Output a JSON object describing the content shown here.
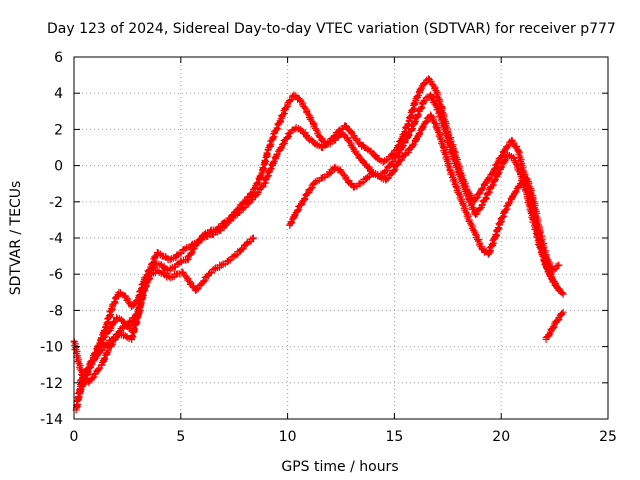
{
  "chart_data": {
    "type": "scatter",
    "title": "Day 123 of 2024, Sidereal Day-to-day VTEC variation (SDTVAR) for receiver p777",
    "xlabel": "GPS time / hours",
    "ylabel": "SDTVAR / TECUs",
    "xlim": [
      0,
      25
    ],
    "ylim": [
      -14,
      6
    ],
    "xticks": [
      0,
      5,
      10,
      15,
      20,
      25
    ],
    "yticks": [
      -14,
      -12,
      -10,
      -8,
      -6,
      -4,
      -2,
      0,
      2,
      4,
      6
    ],
    "grid": true,
    "marker": "+",
    "color": "#ff0000",
    "series": [
      {
        "name": "track-1",
        "x": [
          0.1,
          0.3,
          0.6,
          0.9,
          1.2,
          1.5,
          1.8,
          2.1,
          2.4,
          2.7,
          3.0,
          3.3,
          3.6,
          3.9,
          4.2,
          4.5,
          4.8,
          5.2,
          5.5,
          5.8,
          6.1,
          6.4,
          6.7,
          7.0,
          7.3,
          7.6,
          7.9,
          8.2,
          8.5,
          8.8,
          9.1,
          9.4,
          9.7,
          10.0,
          10.3,
          10.6,
          10.9,
          11.2,
          11.5,
          11.8,
          12.1,
          12.4,
          12.7,
          13.0,
          13.3,
          13.6,
          13.9,
          14.2,
          14.5,
          14.8,
          15.1,
          15.4,
          15.7,
          16.0,
          16.3,
          16.6,
          16.9,
          17.2,
          17.5,
          17.8,
          18.1,
          18.4,
          18.7,
          19.0,
          19.3,
          19.6,
          19.9,
          20.2,
          20.5,
          20.8,
          21.1,
          21.4,
          21.7,
          22.0,
          22.3,
          22.6,
          22.9
        ],
        "y": [
          -13.5,
          -12.2,
          -11.4,
          -10.6,
          -9.8,
          -8.9,
          -7.8,
          -7.0,
          -7.2,
          -7.8,
          -7.4,
          -6.3,
          -5.6,
          -4.8,
          -5.0,
          -5.2,
          -5.0,
          -4.6,
          -4.4,
          -4.2,
          -3.8,
          -3.6,
          -3.5,
          -3.2,
          -2.9,
          -2.5,
          -2.1,
          -1.7,
          -1.2,
          -0.4,
          0.9,
          1.8,
          2.6,
          3.4,
          3.9,
          3.6,
          3.0,
          2.3,
          1.6,
          1.2,
          1.5,
          1.9,
          2.2,
          1.8,
          1.3,
          1.0,
          0.8,
          0.4,
          0.2,
          0.5,
          0.9,
          1.6,
          2.5,
          3.6,
          4.4,
          4.8,
          4.3,
          3.2,
          1.9,
          0.8,
          -0.4,
          -1.3,
          -2.0,
          -1.5,
          -0.9,
          -0.4,
          0.3,
          0.9,
          1.4,
          0.8,
          -0.6,
          -2.1,
          -3.8,
          -5.2,
          -6.1,
          -6.7,
          -7.1
        ]
      },
      {
        "name": "track-2",
        "x": [
          0.2,
          0.5,
          0.8,
          1.1,
          1.4,
          1.7,
          2.0,
          2.3,
          2.6,
          2.9,
          3.2,
          3.5,
          3.8,
          4.1,
          4.4,
          4.7,
          5.0,
          5.3,
          5.6,
          5.9,
          6.2,
          6.5,
          6.8,
          7.1,
          7.4,
          7.7,
          8.0,
          8.3,
          8.6,
          8.9,
          9.2,
          9.5,
          9.8,
          10.1,
          10.4,
          10.7,
          11.0,
          11.3,
          11.6,
          11.9,
          12.2,
          12.5,
          12.8,
          13.1,
          13.4,
          13.7,
          14.0,
          14.3,
          14.6,
          14.9,
          15.2,
          15.5,
          15.8,
          16.1,
          16.4,
          16.7,
          17.0,
          17.3,
          17.6,
          17.9,
          18.2,
          18.5,
          18.8,
          19.1,
          19.4,
          19.7,
          20.0,
          20.3,
          20.6,
          20.9,
          21.2,
          21.5,
          21.8,
          22.1,
          22.4,
          22.7
        ],
        "y": [
          -12.8,
          -11.8,
          -11.0,
          -10.2,
          -9.5,
          -9.0,
          -8.4,
          -8.6,
          -9.0,
          -8.7,
          -7.1,
          -6.0,
          -5.4,
          -5.5,
          -5.8,
          -5.6,
          -5.3,
          -5.2,
          -4.6,
          -4.1,
          -3.9,
          -3.8,
          -3.6,
          -3.3,
          -2.9,
          -2.6,
          -2.3,
          -1.9,
          -1.5,
          -1.0,
          -0.2,
          0.6,
          1.2,
          1.8,
          2.1,
          1.9,
          1.5,
          1.2,
          1.0,
          1.2,
          1.4,
          1.8,
          1.5,
          0.9,
          0.4,
          0.0,
          -0.4,
          -0.6,
          -0.3,
          0.2,
          0.7,
          1.3,
          2.0,
          2.8,
          3.6,
          3.9,
          3.2,
          2.2,
          1.0,
          0.0,
          -1.0,
          -1.9,
          -2.7,
          -2.2,
          -1.5,
          -0.8,
          -0.1,
          0.6,
          0.4,
          -0.5,
          -1.6,
          -3.0,
          -4.4,
          -5.5,
          -6.3,
          -6.9
        ]
      },
      {
        "name": "track-3",
        "x": [
          0.3,
          0.6,
          0.9,
          1.2,
          1.5,
          1.8,
          2.1,
          2.4,
          2.7,
          3.0,
          3.3,
          3.6,
          3.9,
          4.2,
          4.5,
          4.8,
          5.1,
          5.4,
          5.7,
          6.0,
          6.3,
          6.6,
          6.9,
          7.2,
          7.5,
          7.8,
          8.1,
          8.4,
          10.1,
          10.4,
          10.7,
          11.0,
          11.3,
          11.6,
          11.9,
          12.2,
          12.5,
          12.8,
          13.1,
          13.4,
          13.7,
          14.0,
          14.3,
          14.6,
          14.9,
          15.2,
          15.5,
          15.8,
          16.1,
          16.4,
          16.7,
          17.0,
          17.3,
          17.6,
          17.9,
          18.2,
          18.5,
          18.8,
          19.1,
          19.4,
          19.7,
          20.0,
          20.3,
          20.6,
          20.9,
          21.2,
          21.5,
          21.8,
          22.1,
          22.4,
          22.7
        ],
        "y": [
          -11.9,
          -11.3,
          -10.8,
          -10.3,
          -9.9,
          -9.6,
          -9.3,
          -9.4,
          -9.6,
          -8.2,
          -6.8,
          -6.0,
          -5.8,
          -6.0,
          -6.2,
          -6.0,
          -5.9,
          -6.4,
          -6.9,
          -6.5,
          -6.0,
          -5.7,
          -5.5,
          -5.3,
          -5.0,
          -4.7,
          -4.3,
          -4.0,
          -3.3,
          -2.6,
          -2.0,
          -1.4,
          -0.9,
          -0.7,
          -0.5,
          -0.1,
          -0.3,
          -0.8,
          -1.2,
          -1.0,
          -0.7,
          -0.4,
          -0.6,
          -0.8,
          -0.4,
          0.2,
          0.6,
          1.0,
          1.6,
          2.3,
          2.8,
          2.1,
          1.0,
          -0.2,
          -1.2,
          -2.1,
          -3.0,
          -3.8,
          -4.6,
          -4.9,
          -4.0,
          -3.0,
          -2.2,
          -1.6,
          -1.0,
          -0.7,
          -1.8,
          -3.6,
          -5.0,
          -5.8,
          -5.5
        ]
      },
      {
        "name": "track-4",
        "x": [
          0.0,
          0.2,
          0.4,
          0.7,
          1.0,
          1.3,
          1.6,
          2.2,
          2.5,
          2.8,
          3.1,
          22.1,
          22.3,
          22.5,
          22.7,
          22.9
        ],
        "y": [
          -9.7,
          -10.8,
          -11.6,
          -12.0,
          -11.5,
          -11.0,
          -10.2,
          -9.0,
          -8.8,
          -8.4,
          -8.0,
          -9.6,
          -9.2,
          -8.8,
          -8.4,
          -8.1
        ]
      }
    ]
  }
}
